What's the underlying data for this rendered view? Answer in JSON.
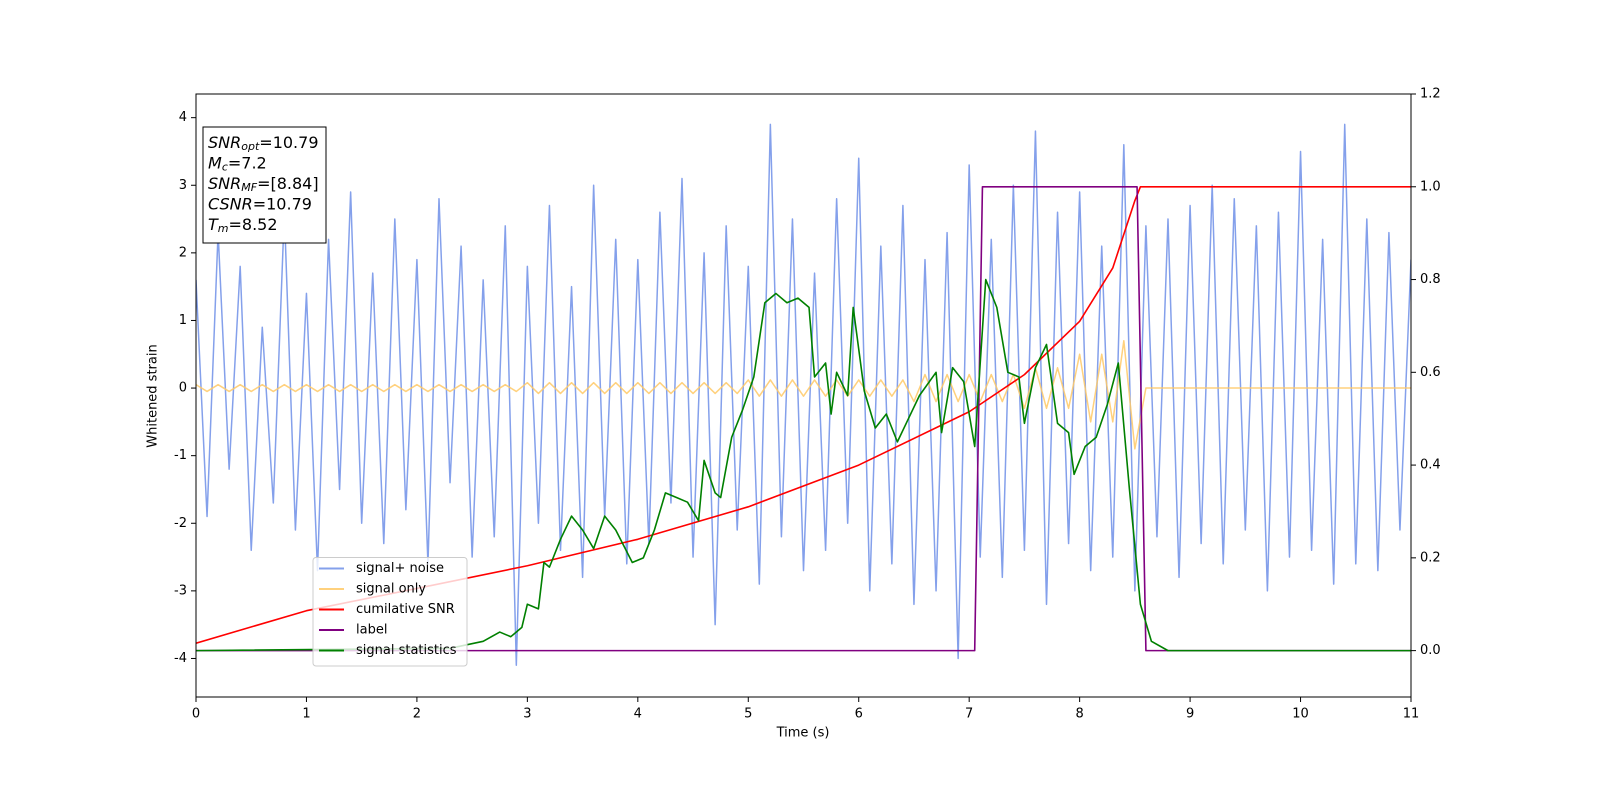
{
  "chart_data": {
    "type": "line",
    "xlabel": "Time (s)",
    "ylabel": "Whitened strain",
    "xlim": [
      0,
      11
    ],
    "ylim": [
      -4.57,
      4.35
    ],
    "y2lim": [
      -0.1,
      1.2
    ],
    "xticks": [
      0,
      1,
      2,
      3,
      4,
      5,
      6,
      7,
      8,
      9,
      10,
      11
    ],
    "yticks": [
      -4,
      -3,
      -2,
      -1,
      0,
      1,
      2,
      3,
      4
    ],
    "y2ticks": [
      {
        "value": 0,
        "label": "0.0"
      },
      {
        "value": 0.2,
        "label": "0.2"
      },
      {
        "value": 0.4,
        "label": "0.4"
      },
      {
        "value": 0.6,
        "label": "0.6"
      },
      {
        "value": 0.8,
        "label": "0.8"
      },
      {
        "value": 1,
        "label": "1.0"
      },
      {
        "value": 1.2,
        "label": "1.2"
      }
    ],
    "legend_loc": "lower left",
    "annotation": [
      {
        "symbol": "SNR",
        "sub": "opt",
        "text": "=10.79"
      },
      {
        "symbol": "M",
        "sub": "c",
        "text": "=7.2"
      },
      {
        "symbol": "SNR",
        "sub": "MF",
        "text": "=[8.84]"
      },
      {
        "symbol": "CSNR",
        "text": "=10.79"
      },
      {
        "symbol": "T",
        "sub": "m",
        "text": "=8.52"
      }
    ],
    "x": [
      0,
      0.1,
      0.2,
      0.3,
      0.4,
      0.5,
      0.6,
      0.7,
      0.8,
      0.9,
      1,
      1.1,
      1.2,
      1.3,
      1.4,
      1.5,
      1.6,
      1.7,
      1.8,
      1.9,
      2,
      2.1,
      2.2,
      2.3,
      2.4,
      2.5,
      2.6,
      2.7,
      2.8,
      2.9,
      3,
      3.1,
      3.2,
      3.3,
      3.4,
      3.5,
      3.6,
      3.7,
      3.8,
      3.9,
      4,
      4.1,
      4.2,
      4.3,
      4.4,
      4.5,
      4.6,
      4.7,
      4.8,
      4.9,
      5,
      5.1,
      5.2,
      5.3,
      5.4,
      5.5,
      5.6,
      5.7,
      5.8,
      5.9,
      6,
      6.1,
      6.2,
      6.3,
      6.4,
      6.5,
      6.6,
      6.7,
      6.8,
      6.9,
      7,
      7.1,
      7.2,
      7.3,
      7.4,
      7.5,
      7.6,
      7.7,
      7.8,
      7.9,
      8,
      8.1,
      8.2,
      8.3,
      8.4,
      8.5,
      8.6,
      8.7,
      8.8,
      8.9,
      9,
      9.1,
      9.2,
      9.3,
      9.4,
      9.5,
      9.6,
      9.7,
      9.8,
      9.9,
      10,
      10.1,
      10.2,
      10.3,
      10.4,
      10.5,
      10.6,
      10.7,
      10.8,
      10.9,
      11
    ],
    "series": [
      {
        "name": "signal+ noise",
        "color": "#6f8fe8",
        "values": [
          1.6,
          -1.9,
          2.3,
          -1.2,
          1.8,
          -2.4,
          0.9,
          -1.7,
          2.6,
          -2.1,
          1.4,
          -2.7,
          2.2,
          -1.5,
          2.9,
          -2.0,
          1.7,
          -2.3,
          2.5,
          -1.8,
          1.9,
          -2.6,
          2.8,
          -1.4,
          2.1,
          -2.5,
          1.6,
          -2.2,
          2.4,
          -4.1,
          1.8,
          -2.0,
          2.7,
          -2.4,
          1.5,
          -2.8,
          3.0,
          -1.9,
          2.2,
          -2.6,
          1.9,
          -2.3,
          2.6,
          -1.7,
          3.1,
          -2.5,
          2.0,
          -3.5,
          2.4,
          -2.1,
          1.8,
          -2.9,
          3.9,
          -2.2,
          2.5,
          -2.7,
          1.7,
          -2.4,
          2.8,
          -2.0,
          3.4,
          -3.0,
          2.1,
          -2.6,
          2.7,
          -3.2,
          1.9,
          -3.0,
          2.3,
          -4.0,
          3.3,
          -2.5,
          2.2,
          -2.8,
          3.0,
          -2.4,
          3.8,
          -3.2,
          2.6,
          -2.3,
          2.9,
          -2.7,
          2.1,
          -2.5,
          3.6,
          -3.0,
          2.4,
          -2.2,
          2.5,
          -2.8,
          2.7,
          -2.3,
          3.0,
          -2.6,
          2.8,
          -2.1,
          2.4,
          -3.0,
          2.6,
          -2.5,
          3.5,
          -2.4,
          2.2,
          -2.9,
          3.9,
          -2.6,
          2.5,
          -2.7,
          2.3,
          -2.1,
          1.9
        ]
      },
      {
        "name": "signal only",
        "color": "#ffc966",
        "values": [
          0.05,
          -0.05,
          0.05,
          -0.05,
          0.05,
          -0.05,
          0.05,
          -0.05,
          0.05,
          -0.05,
          0.05,
          -0.05,
          0.05,
          -0.05,
          0.05,
          -0.05,
          0.05,
          -0.05,
          0.05,
          -0.05,
          0.05,
          -0.05,
          0.05,
          -0.05,
          0.05,
          -0.05,
          0.05,
          -0.05,
          0.05,
          -0.05,
          0.08,
          -0.08,
          0.08,
          -0.08,
          0.08,
          -0.08,
          0.08,
          -0.08,
          0.08,
          -0.08,
          0.08,
          -0.08,
          0.08,
          -0.08,
          0.08,
          -0.08,
          0.08,
          -0.08,
          0.08,
          -0.08,
          0.12,
          -0.12,
          0.12,
          -0.12,
          0.12,
          -0.12,
          0.12,
          -0.12,
          0.12,
          -0.12,
          0.12,
          -0.12,
          0.12,
          -0.12,
          0.12,
          -0.2,
          0.2,
          -0.2,
          0.2,
          -0.2,
          0.2,
          -0.2,
          0.2,
          -0.2,
          0.2,
          -0.3,
          0.3,
          -0.3,
          0.3,
          -0.3,
          0.5,
          -0.5,
          0.5,
          -0.5,
          0.7,
          -0.9,
          0,
          0,
          0,
          0,
          0,
          0,
          0,
          0,
          0,
          0,
          0,
          0,
          0,
          0,
          0,
          0,
          0,
          0,
          0,
          0,
          0,
          0,
          0,
          0,
          0
        ]
      },
      {
        "name": "cumilative SNR",
        "color": "#ff0000",
        "axis": "y2",
        "x": [
          0,
          1,
          2,
          3,
          4,
          5,
          6,
          7,
          7.5,
          8,
          8.3,
          8.5,
          8.55,
          11
        ],
        "values": [
          0.016,
          0.086,
          0.134,
          0.183,
          0.24,
          0.31,
          0.4,
          0.515,
          0.595,
          0.71,
          0.825,
          0.97,
          1.0,
          1.0
        ]
      },
      {
        "name": "label",
        "color": "#800080",
        "axis": "y2",
        "x": [
          0,
          7.05,
          7.12,
          8.52,
          8.6,
          11
        ],
        "values": [
          0,
          0,
          1,
          1,
          0,
          0
        ]
      },
      {
        "name": "signal statistics",
        "color": "#008000",
        "axis": "y2",
        "x": [
          0,
          2.3,
          2.6,
          2.75,
          2.85,
          2.95,
          3.0,
          3.1,
          3.15,
          3.2,
          3.3,
          3.4,
          3.5,
          3.6,
          3.7,
          3.8,
          3.95,
          4.05,
          4.15,
          4.25,
          4.35,
          4.45,
          4.55,
          4.6,
          4.7,
          4.75,
          4.85,
          4.95,
          5.05,
          5.15,
          5.25,
          5.35,
          5.45,
          5.55,
          5.6,
          5.7,
          5.75,
          5.8,
          5.9,
          5.95,
          6.05,
          6.15,
          6.25,
          6.35,
          6.45,
          6.55,
          6.7,
          6.75,
          6.85,
          6.95,
          7.05,
          7.15,
          7.25,
          7.35,
          7.45,
          7.5,
          7.6,
          7.7,
          7.8,
          7.9,
          7.95,
          8.05,
          8.15,
          8.25,
          8.35,
          8.45,
          8.55,
          8.65,
          8.8,
          11
        ],
        "values": [
          0,
          0.005,
          0.02,
          0.04,
          0.03,
          0.05,
          0.1,
          0.09,
          0.19,
          0.18,
          0.24,
          0.29,
          0.26,
          0.22,
          0.29,
          0.26,
          0.19,
          0.2,
          0.26,
          0.34,
          0.33,
          0.32,
          0.28,
          0.41,
          0.34,
          0.33,
          0.46,
          0.52,
          0.59,
          0.75,
          0.77,
          0.75,
          0.76,
          0.74,
          0.59,
          0.62,
          0.51,
          0.6,
          0.55,
          0.74,
          0.56,
          0.48,
          0.51,
          0.45,
          0.5,
          0.55,
          0.6,
          0.47,
          0.61,
          0.58,
          0.44,
          0.8,
          0.74,
          0.6,
          0.59,
          0.49,
          0.61,
          0.66,
          0.49,
          0.47,
          0.38,
          0.44,
          0.46,
          0.53,
          0.62,
          0.35,
          0.1,
          0.02,
          0,
          0
        ]
      }
    ]
  }
}
